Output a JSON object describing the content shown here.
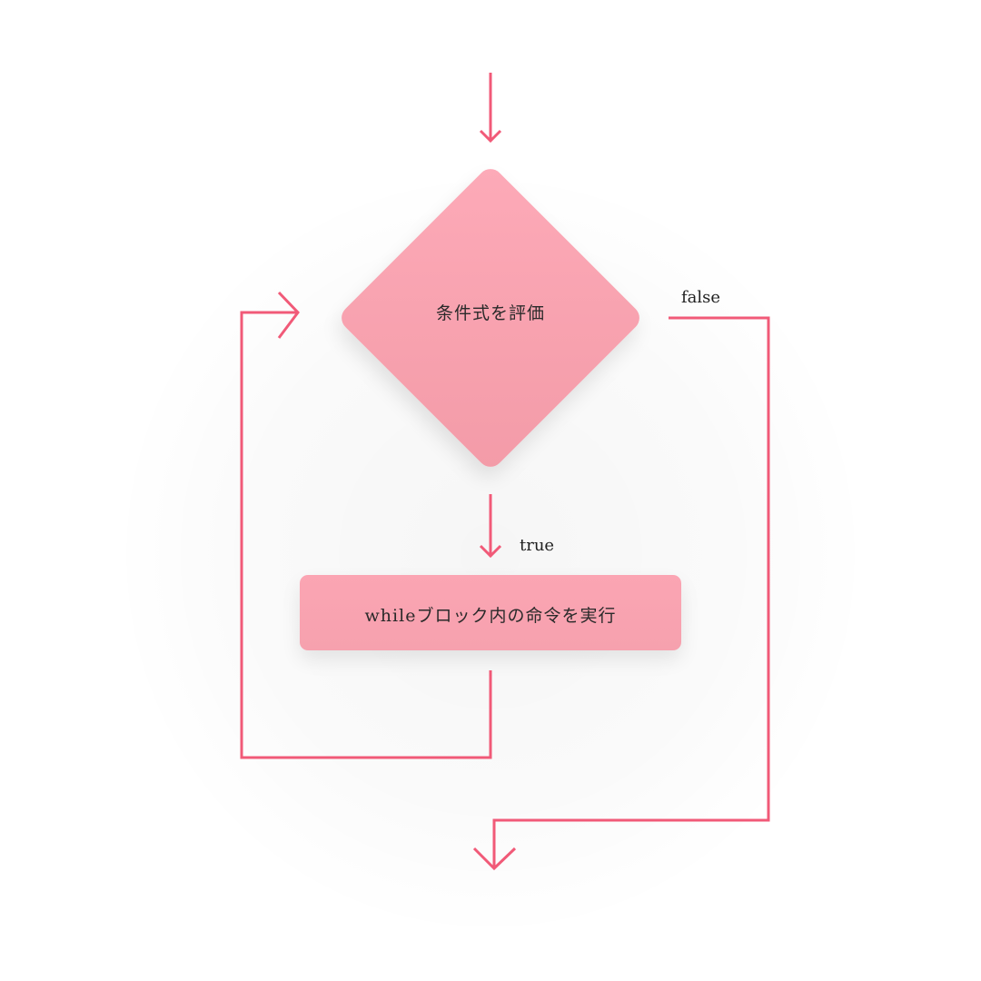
{
  "diagram": {
    "decision": {
      "label": "条件式を評価"
    },
    "process": {
      "label": "whileブロック内の命令を実行"
    },
    "edges": {
      "false_label": "false",
      "true_label": "true"
    },
    "colors": {
      "arrow": "#f15a78",
      "node_fill": "#f8a3b1",
      "text": "#2a2a2a"
    }
  }
}
